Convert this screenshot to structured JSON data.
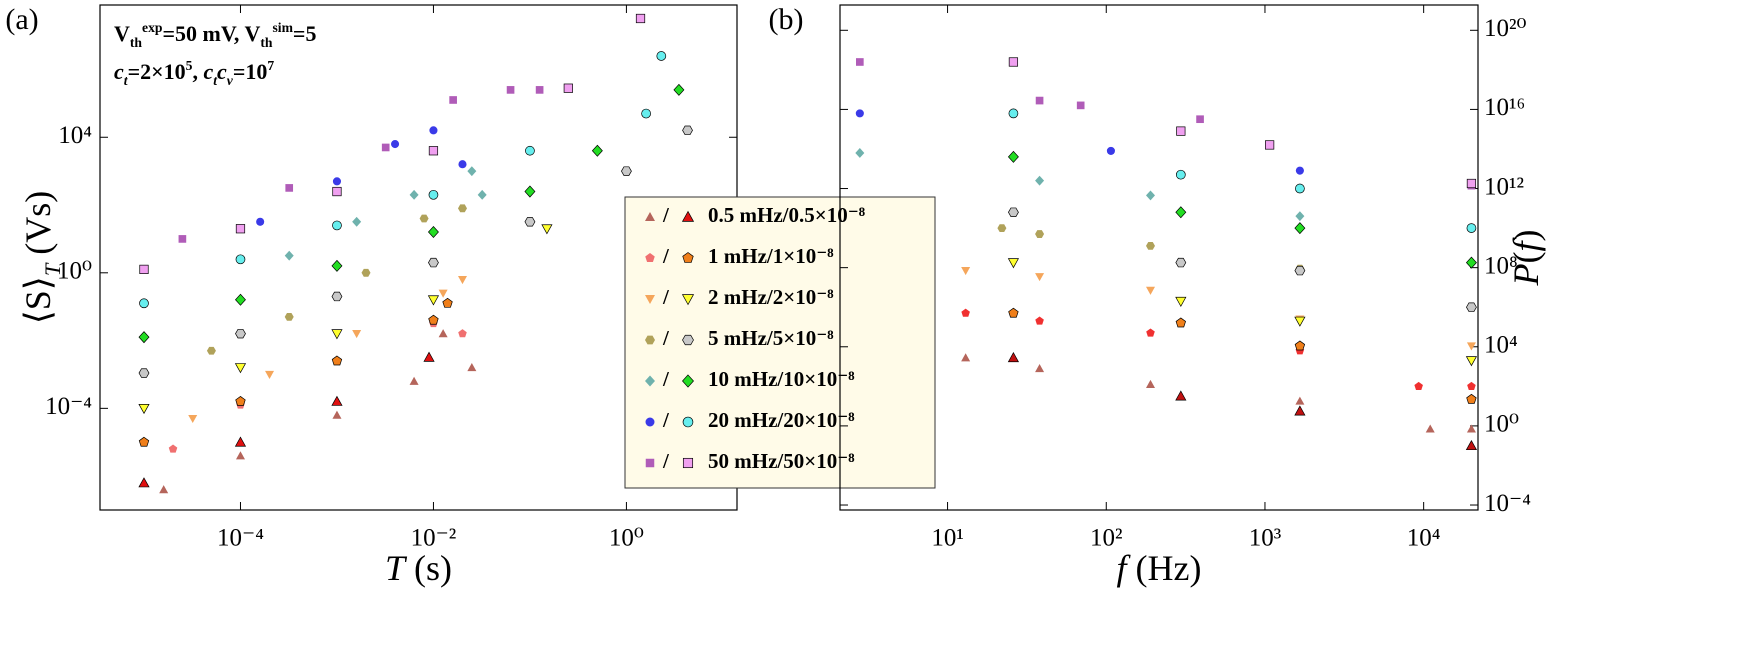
{
  "chart_data": [
    {
      "type": "scatter",
      "panel_label": "(a)",
      "log_x": true,
      "log_y": true,
      "xlabel": [
        {
          "text": "T",
          "italic": true
        },
        {
          "text": " (s)"
        }
      ],
      "ylabel": [
        {
          "text": "⟨S⟩"
        },
        {
          "text": "T",
          "italic": true,
          "shift": "sub"
        },
        {
          "text": " (Vs)"
        }
      ],
      "annotations": [
        [
          {
            "text": "V"
          },
          {
            "text": "th",
            "shift": "sub"
          },
          {
            "text": "exp",
            "shift": "super"
          },
          {
            "text": "=50 mV, V"
          },
          {
            "text": "th",
            "shift": "sub"
          },
          {
            "text": "sim",
            "shift": "super"
          },
          {
            "text": "=5"
          }
        ],
        [
          {
            "text": "c",
            "italic": true
          },
          {
            "text": "t",
            "italic": true,
            "shift": "sub"
          },
          {
            "text": "=2×10"
          },
          {
            "text": "5",
            "shift": "super"
          },
          {
            "text": ", "
          },
          {
            "text": "c",
            "italic": true
          },
          {
            "text": "t",
            "italic": true,
            "shift": "sub"
          },
          {
            "text": "c",
            "italic": true
          },
          {
            "text": "v",
            "italic": true,
            "shift": "sub"
          },
          {
            "text": "=10"
          },
          {
            "text": "7",
            "shift": "super"
          }
        ]
      ],
      "xlim": [
        3.5e-06,
        14
      ],
      "ylim": [
        1e-07,
        80000000.0
      ],
      "xticks": [
        {
          "value": 0.0001,
          "label": "10⁻⁴"
        },
        {
          "value": 0.01,
          "label": "10⁻²"
        },
        {
          "value": 1,
          "label": "10⁰"
        }
      ],
      "yticks": [
        {
          "value": 0.0001,
          "label": "10⁻⁴"
        },
        {
          "value": 1,
          "label": "10⁰"
        },
        {
          "value": 10000,
          "label": "10⁴"
        }
      ],
      "series": [
        {
          "name": "0.5 mHz/0.5×10⁻⁸",
          "exp": {
            "marker": "triangle-up",
            "color": "#b5655b",
            "x": [
              1.6e-05,
              0.0001,
              0.001,
              0.0063,
              0.0126,
              0.025
            ],
            "y": [
              4e-07,
              4e-06,
              6.3e-05,
              0.00063,
              0.016,
              0.0016
            ]
          },
          "sim": {
            "marker": "triangle-up",
            "color": "#e01010",
            "x": [
              1e-05,
              0.0001,
              0.001,
              0.009
            ],
            "y": [
              6.3e-07,
              1e-05,
              0.00016,
              0.0032
            ]
          }
        },
        {
          "name": "1 mHz/1×10⁻⁸",
          "exp": {
            "marker": "pentagon",
            "color": "#f07070",
            "x": [
              2e-05,
              0.0001,
              0.001,
              0.01,
              0.014,
              0.02
            ],
            "y": [
              6.3e-06,
              0.000126,
              0.0025,
              0.032,
              0.126,
              0.016
            ]
          },
          "sim": {
            "marker": "pentagon",
            "color": "#f07f1a",
            "x": [
              1e-05,
              0.0001,
              0.001,
              0.01,
              0.014
            ],
            "y": [
              1e-05,
              0.00016,
              0.0025,
              0.04,
              0.126
            ]
          }
        },
        {
          "name": "2 mHz/2×10⁻⁸",
          "exp": {
            "marker": "triangle-down",
            "color": "#f5a65b",
            "x": [
              3.2e-05,
              0.0002,
              0.0016,
              0.0126,
              0.02
            ],
            "y": [
              5e-05,
              0.001,
              0.016,
              0.25,
              0.63
            ]
          },
          "sim": {
            "marker": "triangle-down",
            "color": "#ffff30",
            "x": [
              1e-05,
              0.0001,
              0.001,
              0.01,
              0.15
            ],
            "y": [
              0.0001,
              0.0016,
              0.016,
              0.16,
              20
            ]
          }
        },
        {
          "name": "5 mHz/5×10⁻⁸",
          "exp": {
            "marker": "hexagon",
            "color": "#b0a25a",
            "x": [
              5e-05,
              0.00032,
              0.002,
              0.008,
              0.02
            ],
            "y": [
              0.005,
              0.05,
              1,
              40,
              80
            ]
          },
          "sim": {
            "marker": "hexagon",
            "color": "#c8c8c8",
            "x": [
              1e-05,
              0.0001,
              0.001,
              0.01,
              0.1,
              1,
              4.3
            ],
            "y": [
              0.0011,
              0.016,
              0.2,
              2,
              32,
              1000,
              16000
            ]
          }
        },
        {
          "name": "10 mHz/10×10⁻⁸",
          "exp": {
            "marker": "diamond",
            "color": "#6fb2ad",
            "x": [
              0.00032,
              0.0016,
              0.0063,
              0.025,
              0.032
            ],
            "y": [
              3.2,
              32,
              200,
              1000,
              200
            ]
          },
          "sim": {
            "marker": "diamond",
            "color": "#22dd22",
            "x": [
              1e-05,
              0.0001,
              0.001,
              0.01,
              0.1,
              0.5,
              3.5
            ],
            "y": [
              0.0126,
              0.16,
              1.6,
              16,
              250,
              4000,
              250000
            ]
          }
        },
        {
          "name": "20 mHz/20×10⁻⁸",
          "exp": {
            "marker": "circle",
            "color": "#3a3ae8",
            "x": [
              0.00016,
              0.001,
              0.004,
              0.01,
              0.02
            ],
            "y": [
              32,
              500,
              6300,
              16000,
              1600
            ]
          },
          "sim": {
            "marker": "circle",
            "color": "#66eeee",
            "x": [
              1e-05,
              0.0001,
              0.001,
              0.01,
              0.1,
              1.6,
              2.3
            ],
            "y": [
              0.126,
              2.5,
              25,
              200,
              4000,
              50000,
              2500000
            ]
          }
        },
        {
          "name": "50 mHz/50×10⁻⁸",
          "exp": {
            "marker": "square",
            "color": "#b05cb8",
            "x": [
              2.5e-05,
              0.00032,
              0.0032,
              0.016,
              0.063,
              0.126
            ],
            "y": [
              10,
              320,
              5000,
              126000,
              250000,
              250000
            ]
          },
          "sim": {
            "marker": "square",
            "color": "#f0a0f0",
            "x": [
              1e-05,
              0.0001,
              0.001,
              0.01,
              0.25,
              1.4
            ],
            "y": [
              1.26,
              20,
              250,
              4000,
              280000,
              32000000
            ]
          }
        }
      ]
    },
    {
      "type": "scatter",
      "panel_label": "(b)",
      "log_x": true,
      "log_y": true,
      "xlabel": [
        {
          "text": "f",
          "italic": true
        },
        {
          "text": " (Hz)"
        }
      ],
      "ylabel": [
        {
          "text": "P",
          "italic": true
        },
        {
          "text": "("
        },
        {
          "text": "f",
          "italic": true
        },
        {
          "text": ")"
        }
      ],
      "xlim": [
        2.1,
        22000
      ],
      "ylim": [
        5.6e-05,
        1.9e+21
      ],
      "xticks": [
        {
          "value": 10,
          "label": "10¹"
        },
        {
          "value": 100,
          "label": "10²"
        },
        {
          "value": 1000,
          "label": "10³"
        },
        {
          "value": 10000,
          "label": "10⁴"
        }
      ],
      "yticks": [
        {
          "value": 0.0001,
          "label": "10⁻⁴"
        },
        {
          "value": 1,
          "label": "10⁰"
        },
        {
          "value": 10000,
          "label": "10⁴"
        },
        {
          "value": 100000000,
          "label": "10⁸"
        },
        {
          "value": 1000000000000.0,
          "label": "10¹²"
        },
        {
          "value": 1e+16,
          "label": "10¹⁶"
        },
        {
          "value": 1e+20,
          "label": "10²⁰"
        }
      ],
      "series": [
        {
          "exp": {
            "marker": "triangle-up",
            "color": "#b5655b",
            "x": [
              13,
              38,
              190,
              1660,
              11000,
              20000
            ],
            "y": [
              2800,
              800,
              126,
              18,
              0.7,
              0.7
            ]
          },
          "sim": {
            "marker": "triangle-up",
            "color": "#c01010",
            "x": [
              26,
              295,
              1660,
              20000
            ],
            "y": [
              2800,
              32,
              5.6,
              0.1
            ]
          }
        },
        {
          "exp": {
            "marker": "pentagon",
            "color": "#f03030",
            "x": [
              13,
              38,
              190,
              1660,
              9300,
              20000
            ],
            "y": [
              500000,
              200000,
              50000,
              6300,
              100,
              100
            ]
          },
          "sim": {
            "marker": "pentagon",
            "color": "#f07f1a",
            "x": [
              26,
              295,
              1660,
              20000
            ],
            "y": [
              500000,
              160000,
              11000,
              22
            ]
          }
        },
        {
          "exp": {
            "marker": "triangle-down",
            "color": "#f5a65b",
            "x": [
              13,
              38,
              190,
              1660,
              20000
            ],
            "y": [
              71000000,
              35000000,
              7100000,
              250000,
              11000
            ]
          },
          "sim": {
            "marker": "triangle-down",
            "color": "#ffff30",
            "x": [
              26,
              295,
              1660,
              20000
            ],
            "y": [
              180000000,
              2000000,
              200000,
              2000
            ]
          }
        },
        {
          "exp": {
            "marker": "hexagon",
            "color": "#b0a25a",
            "x": [
              22,
              38,
              190,
              1660,
              20000
            ],
            "y": [
              10000000000,
              5000000000,
              1260000000,
              89000000,
              1000000
            ]
          },
          "sim": {
            "marker": "hexagon",
            "color": "#c8c8c8",
            "x": [
              26,
              295,
              1660,
              20000
            ],
            "y": [
              63000000000,
              180000000,
              71000000,
              1000000
            ]
          }
        },
        {
          "exp": {
            "marker": "diamond",
            "color": "#6fb2ad",
            "x": [
              2.8,
              38,
              190,
              1660,
              20000
            ],
            "y": [
              63000000000000,
              2500000000000,
              450000000000,
              40000000000,
              160000000
            ]
          },
          "sim": {
            "marker": "diamond",
            "color": "#22dd22",
            "x": [
              26,
              295,
              1660,
              20000
            ],
            "y": [
              40000000000000,
              63000000000,
              10000000000,
              180000000
            ]
          }
        },
        {
          "exp": {
            "marker": "circle",
            "color": "#3a3ae8",
            "x": [
              2.8,
              107,
              1660,
              20000
            ],
            "y": [
              6300000000000000,
              80000000000000,
              8000000000000,
              10000000000
            ]
          },
          "sim": {
            "marker": "circle",
            "color": "#66eeee",
            "x": [
              26,
              295,
              1660,
              20000
            ],
            "y": [
              6300000000000000,
              5000000000000,
              1000000000000,
              10000000000
            ]
          }
        },
        {
          "exp": {
            "marker": "square",
            "color": "#b05cb8",
            "x": [
              2.8,
              38,
              69,
              390,
              20000
            ],
            "y": [
              2.5e+18,
              2.8e+16,
              1.6e+16,
              3200000000000000.0,
              1400000000000.0
            ]
          },
          "sim": {
            "marker": "square",
            "color": "#f0a0f0",
            "x": [
              26,
              295,
              1070,
              20000
            ],
            "y": [
              2.5e+18,
              800000000000000.0,
              160000000000000.0,
              1800000000000.0
            ]
          }
        }
      ]
    }
  ]
}
